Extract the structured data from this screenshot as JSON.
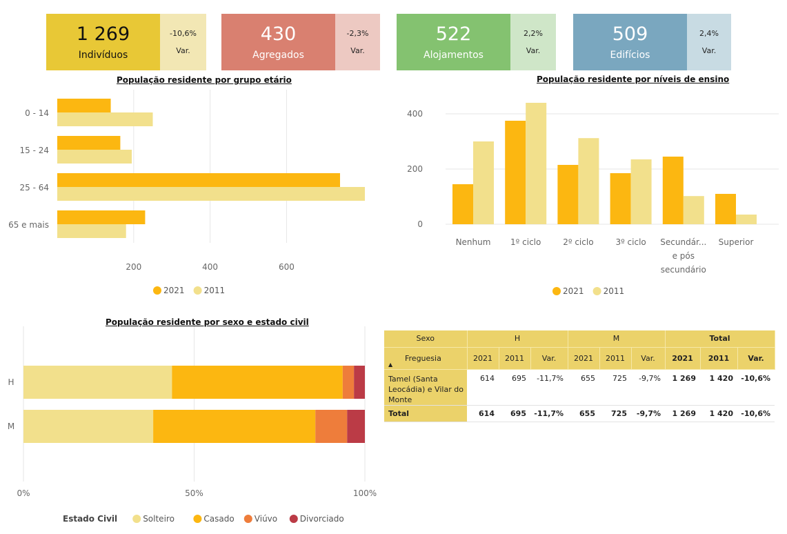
{
  "kpis": [
    {
      "value": "1 269",
      "label": "Indivíduos",
      "var": "-10,6%",
      "var_label": "Var.",
      "color_main": "#e8c836",
      "color_side": "#f2e7b4"
    },
    {
      "value": "430",
      "label": "Agregados",
      "var": "-2,3%",
      "var_label": "Var.",
      "color_main": "#d98070",
      "color_side": "#edc9c2"
    },
    {
      "value": "522",
      "label": "Alojamentos",
      "var": "2,2%",
      "var_label": "Var.",
      "color_main": "#84c270",
      "color_side": "#cfe6c8"
    },
    {
      "value": "509",
      "label": "Edifícios",
      "var": "2,4%",
      "var_label": "Var.",
      "color_main": "#7aa7bf",
      "color_side": "#c8dbe3"
    }
  ],
  "chart_data": [
    {
      "type": "bar",
      "orientation": "horizontal",
      "title": "População residente por grupo etário",
      "categories": [
        "0 - 14",
        "15 - 24",
        "25 - 64",
        "65 e mais"
      ],
      "series": [
        {
          "name": "2021",
          "values": [
            140,
            165,
            740,
            230
          ],
          "color": "#fcb711"
        },
        {
          "name": "2011",
          "values": [
            250,
            195,
            805,
            180
          ],
          "color": "#f2e08c"
        }
      ],
      "xticks": [
        "200",
        "400",
        "600"
      ],
      "xlim": [
        0,
        805
      ],
      "grid": true,
      "legend": "bottom"
    },
    {
      "type": "bar",
      "title": "População residente por níveis de ensino",
      "categories": [
        [
          "Nenhum"
        ],
        [
          "1º ciclo"
        ],
        [
          "2º ciclo"
        ],
        [
          "3º ciclo"
        ],
        [
          "Secundár...",
          "e pós",
          "secundário"
        ],
        [
          "Superior"
        ]
      ],
      "series": [
        {
          "name": "2021",
          "values": [
            145,
            375,
            215,
            185,
            245,
            110
          ],
          "color": "#fcb711"
        },
        {
          "name": "2011",
          "values": [
            300,
            440,
            312,
            235,
            102,
            35
          ],
          "color": "#f2e08c"
        }
      ],
      "yticks": [
        "0",
        "200",
        "400"
      ],
      "ylim": [
        0,
        440
      ],
      "grid": true,
      "legend": "bottom"
    },
    {
      "type": "bar",
      "orientation": "horizontal",
      "stacked": "percent",
      "title": "População residente por sexo e estado civil",
      "categories": [
        "H",
        "M"
      ],
      "legend_title": "Estado Civil",
      "series": [
        {
          "name": "Solteiro",
          "values": [
            43.5,
            38
          ],
          "color": "#f2e08c"
        },
        {
          "name": "Casado",
          "values": [
            50,
            47.5
          ],
          "color": "#fcb711"
        },
        {
          "name": "Viúvo",
          "values": [
            3.3,
            9.3
          ],
          "color": "#ee7d3b"
        },
        {
          "name": "Divorciado",
          "values": [
            3.2,
            5.2
          ],
          "color": "#bb3b46"
        }
      ],
      "xticks": [
        "0%",
        "50%",
        "100%"
      ],
      "xlim": [
        0,
        100
      ],
      "grid": true,
      "legend": "bottom"
    }
  ],
  "table": {
    "col_sexo": "Sexo",
    "col_freguesia": "Freguesia",
    "groups": [
      "H",
      "M",
      "Total"
    ],
    "subcols": [
      "2021",
      "2011",
      "Var.",
      "2021",
      "2011",
      "Var.",
      "2021",
      "2011",
      "Var."
    ],
    "rows": [
      {
        "name": "Tamel (Santa Leocádia) e Vilar do Monte",
        "values": [
          "614",
          "695",
          "-11,7%",
          "655",
          "725",
          "-9,7%",
          "1 269",
          "1 420",
          "-10,6%"
        ]
      }
    ],
    "total": {
      "name": "Total",
      "values": [
        "614",
        "695",
        "-11,7%",
        "655",
        "725",
        "-9,7%",
        "1 269",
        "1 420",
        "-10,6%"
      ]
    }
  }
}
